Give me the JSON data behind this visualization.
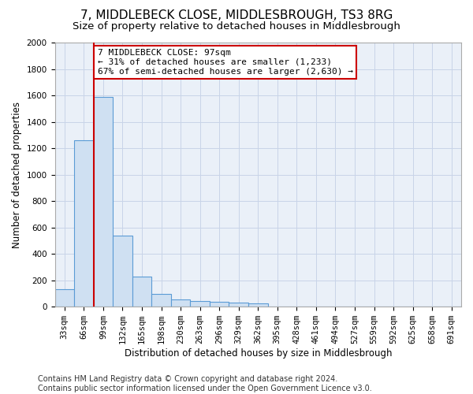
{
  "title": "7, MIDDLEBECK CLOSE, MIDDLESBROUGH, TS3 8RG",
  "subtitle": "Size of property relative to detached houses in Middlesbrough",
  "xlabel": "Distribution of detached houses by size in Middlesbrough",
  "ylabel": "Number of detached properties",
  "categories": [
    "33sqm",
    "66sqm",
    "99sqm",
    "132sqm",
    "165sqm",
    "198sqm",
    "230sqm",
    "263sqm",
    "296sqm",
    "329sqm",
    "362sqm",
    "395sqm",
    "428sqm",
    "461sqm",
    "494sqm",
    "527sqm",
    "559sqm",
    "592sqm",
    "625sqm",
    "658sqm",
    "691sqm"
  ],
  "bar_values": [
    130,
    1260,
    1590,
    540,
    230,
    95,
    55,
    45,
    35,
    30,
    25,
    0,
    0,
    0,
    0,
    0,
    0,
    0,
    0,
    0,
    0
  ],
  "bar_color": "#cfe0f2",
  "bar_edge_color": "#5b9bd5",
  "annotation_text": "7 MIDDLEBECK CLOSE: 97sqm\n← 31% of detached houses are smaller (1,233)\n67% of semi-detached houses are larger (2,630) →",
  "annotation_box_color": "#ffffff",
  "annotation_box_edge_color": "#cc0000",
  "vline_color": "#cc0000",
  "ylim": [
    0,
    2000
  ],
  "yticks": [
    0,
    200,
    400,
    600,
    800,
    1000,
    1200,
    1400,
    1600,
    1800,
    2000
  ],
  "grid_color": "#c8d4e8",
  "background_color": "#eaf0f8",
  "footer_text": "Contains HM Land Registry data © Crown copyright and database right 2024.\nContains public sector information licensed under the Open Government Licence v3.0.",
  "title_fontsize": 11,
  "subtitle_fontsize": 9.5,
  "annotation_fontsize": 8,
  "footer_fontsize": 7,
  "axis_label_fontsize": 8.5,
  "tick_fontsize": 7.5
}
